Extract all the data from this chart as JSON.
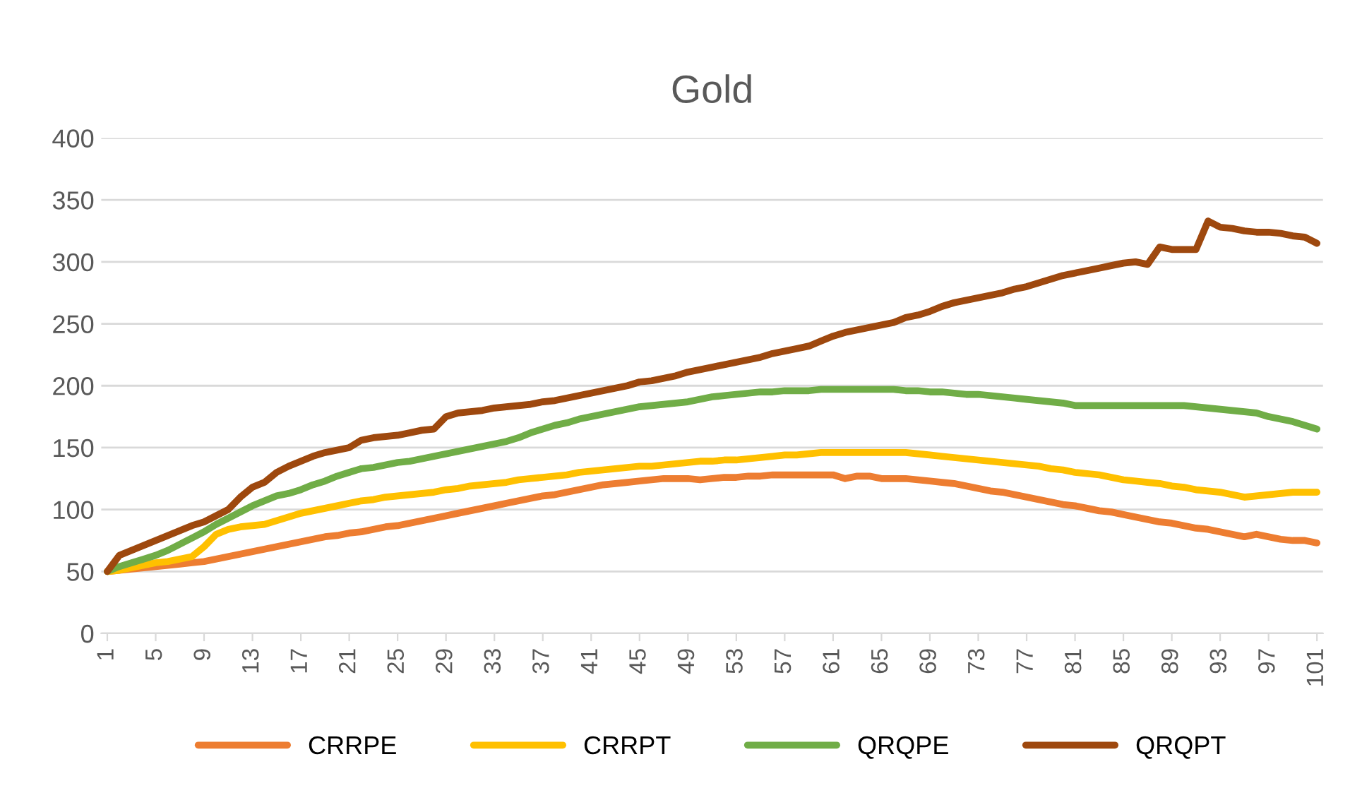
{
  "chart_data": {
    "type": "line",
    "title": "Gold",
    "categories": [
      "1",
      null,
      null,
      null,
      "5",
      null,
      null,
      null,
      "9",
      null,
      null,
      null,
      "13",
      null,
      null,
      null,
      "17",
      null,
      null,
      null,
      "21",
      null,
      null,
      null,
      "25",
      null,
      null,
      null,
      "29",
      null,
      null,
      null,
      "33",
      null,
      null,
      null,
      "37",
      null,
      null,
      null,
      "41",
      null,
      null,
      null,
      "45",
      null,
      null,
      null,
      "49",
      null,
      null,
      null,
      "53",
      null,
      null,
      null,
      "57",
      null,
      null,
      null,
      "61",
      null,
      null,
      null,
      "65",
      null,
      null,
      null,
      "69",
      null,
      null,
      null,
      "73",
      null,
      null,
      null,
      "77",
      null,
      null,
      null,
      "81",
      null,
      null,
      null,
      "85",
      null,
      null,
      null,
      "89",
      null,
      null,
      null,
      "93",
      null,
      null,
      null,
      "97",
      null,
      null,
      null,
      "101"
    ],
    "series": [
      {
        "name": "CRRPE",
        "color": "#ed7d31",
        "values": [
          50,
          51,
          52,
          53,
          54,
          55,
          56,
          57,
          58,
          60,
          62,
          64,
          66,
          68,
          70,
          72,
          74,
          76,
          78,
          79,
          81,
          82,
          84,
          86,
          87,
          89,
          91,
          93,
          95,
          97,
          99,
          101,
          103,
          105,
          107,
          109,
          111,
          112,
          114,
          116,
          118,
          120,
          121,
          122,
          123,
          124,
          125,
          125,
          125,
          124,
          125,
          126,
          126,
          127,
          127,
          128,
          128,
          128,
          128,
          128,
          128,
          125,
          127,
          127,
          125,
          125,
          125,
          124,
          123,
          122,
          121,
          119,
          117,
          115,
          114,
          112,
          110,
          108,
          106,
          104,
          103,
          101,
          99,
          98,
          96,
          94,
          92,
          90,
          89,
          87,
          85,
          84,
          82,
          80,
          78,
          80,
          78,
          76,
          75,
          75,
          73
        ]
      },
      {
        "name": "CRRPT",
        "color": "#ffc000",
        "values": [
          50,
          51,
          53,
          55,
          57,
          58,
          60,
          62,
          70,
          80,
          84,
          86,
          87,
          88,
          91,
          94,
          97,
          99,
          101,
          103,
          105,
          107,
          108,
          110,
          111,
          112,
          113,
          114,
          116,
          117,
          119,
          120,
          121,
          122,
          124,
          125,
          126,
          127,
          128,
          130,
          131,
          132,
          133,
          134,
          135,
          135,
          136,
          137,
          138,
          139,
          139,
          140,
          140,
          141,
          142,
          143,
          144,
          144,
          145,
          146,
          146,
          146,
          146,
          146,
          146,
          146,
          146,
          145,
          144,
          143,
          142,
          141,
          140,
          139,
          138,
          137,
          136,
          135,
          133,
          132,
          130,
          129,
          128,
          126,
          124,
          123,
          122,
          121,
          119,
          118,
          116,
          115,
          114,
          112,
          110,
          111,
          112,
          113,
          114,
          114,
          114
        ]
      },
      {
        "name": "QRQPE",
        "color": "#70ad47",
        "values": [
          50,
          54,
          57,
          60,
          63,
          67,
          72,
          77,
          82,
          88,
          93,
          98,
          103,
          107,
          111,
          113,
          116,
          120,
          123,
          127,
          130,
          133,
          134,
          136,
          138,
          139,
          141,
          143,
          145,
          147,
          149,
          151,
          153,
          155,
          158,
          162,
          165,
          168,
          170,
          173,
          175,
          177,
          179,
          181,
          183,
          184,
          185,
          186,
          187,
          189,
          191,
          192,
          193,
          194,
          195,
          195,
          196,
          196,
          196,
          197,
          197,
          197,
          197,
          197,
          197,
          197,
          196,
          196,
          195,
          195,
          194,
          193,
          193,
          192,
          191,
          190,
          189,
          188,
          187,
          186,
          184,
          184,
          184,
          184,
          184,
          184,
          184,
          184,
          184,
          184,
          183,
          182,
          181,
          180,
          179,
          178,
          175,
          173,
          171,
          168,
          165
        ]
      },
      {
        "name": "QRQPT",
        "color": "#9e480e",
        "values": [
          50,
          63,
          67,
          71,
          75,
          79,
          83,
          87,
          90,
          95,
          100,
          110,
          118,
          122,
          130,
          135,
          139,
          143,
          146,
          148,
          150,
          156,
          158,
          159,
          160,
          162,
          164,
          165,
          175,
          178,
          179,
          180,
          182,
          183,
          184,
          185,
          187,
          188,
          190,
          192,
          194,
          196,
          198,
          200,
          203,
          204,
          206,
          208,
          211,
          213,
          215,
          217,
          219,
          221,
          223,
          226,
          228,
          230,
          232,
          236,
          240,
          243,
          245,
          247,
          249,
          251,
          255,
          257,
          260,
          264,
          267,
          269,
          271,
          273,
          275,
          278,
          280,
          283,
          286,
          289,
          291,
          293,
          295,
          297,
          299,
          300,
          298,
          312,
          310,
          310,
          310,
          333,
          328,
          327,
          325,
          324,
          324,
          323,
          321,
          320,
          315
        ]
      }
    ],
    "ylim": [
      0,
      400
    ],
    "yticks": [
      0,
      50,
      100,
      150,
      200,
      250,
      300,
      350,
      400
    ],
    "grid": "y",
    "legend": "bottom",
    "marker": "none",
    "line_style": "solid"
  }
}
